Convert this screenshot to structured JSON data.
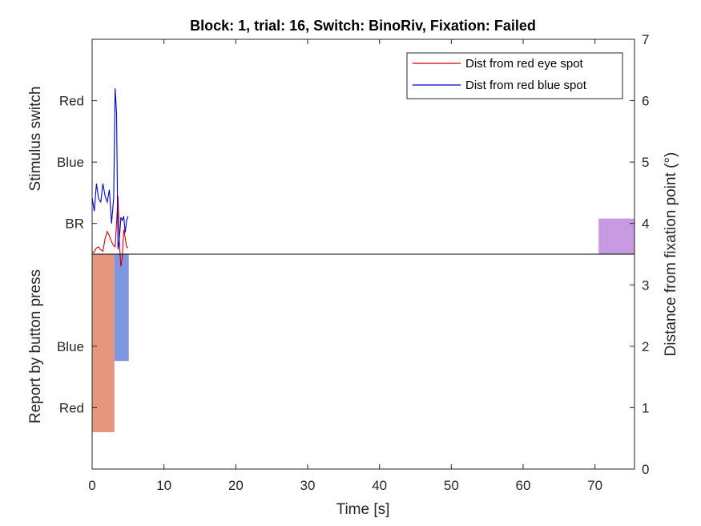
{
  "chart_data": {
    "type": "line",
    "title": "Block: 1, trial: 16, Switch: BinoRiv, Fixation: Failed",
    "xlabel": "Time [s]",
    "xlim": [
      0,
      75.5
    ],
    "xticks": [
      0,
      10,
      20,
      30,
      40,
      50,
      60,
      70
    ],
    "ylabel_left_upper": "Stimulus switch",
    "ylabel_left_lower": "Report by button press",
    "left_ticks": [
      {
        "label": "Red",
        "value": 6
      },
      {
        "label": "Blue",
        "value": 5
      },
      {
        "label": "BR",
        "value": 4
      },
      {
        "label": "Blue",
        "value": 2
      },
      {
        "label": "Red",
        "value": 1
      }
    ],
    "ylabel_right": "Distance from fixation point (°)",
    "ylim": [
      0,
      7
    ],
    "yticks_right": [
      0,
      1,
      2,
      3,
      4,
      5,
      6,
      7
    ],
    "baseline": 3.5,
    "grid": false,
    "legend_position": "top-right",
    "series": [
      {
        "name": "Dist from red eye spot",
        "color": "#d00000",
        "x": [
          0,
          0.3,
          0.6,
          0.9,
          1.2,
          1.5,
          1.8,
          2.1,
          2.4,
          2.7,
          3.0,
          3.2,
          3.4,
          3.6,
          3.8,
          4.0,
          4.2,
          4.4,
          4.6,
          4.8,
          5.0
        ],
        "y": [
          3.52,
          3.54,
          3.6,
          3.62,
          3.57,
          3.55,
          3.75,
          3.87,
          3.8,
          3.7,
          3.64,
          3.62,
          4.0,
          4.45,
          3.68,
          3.3,
          3.45,
          3.9,
          3.77,
          3.62,
          3.6
        ]
      },
      {
        "name": "Dist from red blue spot",
        "color": "#0000d0",
        "x": [
          0,
          0.3,
          0.6,
          0.9,
          1.2,
          1.5,
          1.8,
          2.1,
          2.4,
          2.7,
          3.0,
          3.2,
          3.4,
          3.6,
          3.8,
          4.0,
          4.2,
          4.4,
          4.6,
          4.8,
          5.0
        ],
        "y": [
          4.42,
          4.2,
          4.65,
          4.4,
          4.35,
          4.65,
          4.45,
          4.35,
          4.55,
          4.0,
          4.42,
          6.2,
          5.8,
          3.58,
          3.75,
          4.1,
          4.05,
          4.12,
          3.85,
          4.05,
          4.12
        ]
      }
    ],
    "patches": [
      {
        "label": "Red",
        "color": "#e6967d",
        "x0": 0,
        "x1": 3.1,
        "y0": 0.6,
        "y1": 3.5
      },
      {
        "label": "Blue",
        "color": "#7f96e0",
        "x0": 3.1,
        "x1": 5.1,
        "y0": 1.76,
        "y1": 3.5
      },
      {
        "label": "BR",
        "color": "#c89ae1",
        "x0": 70.5,
        "x1": 75.5,
        "y0": 3.5,
        "y1": 4.08
      }
    ]
  }
}
